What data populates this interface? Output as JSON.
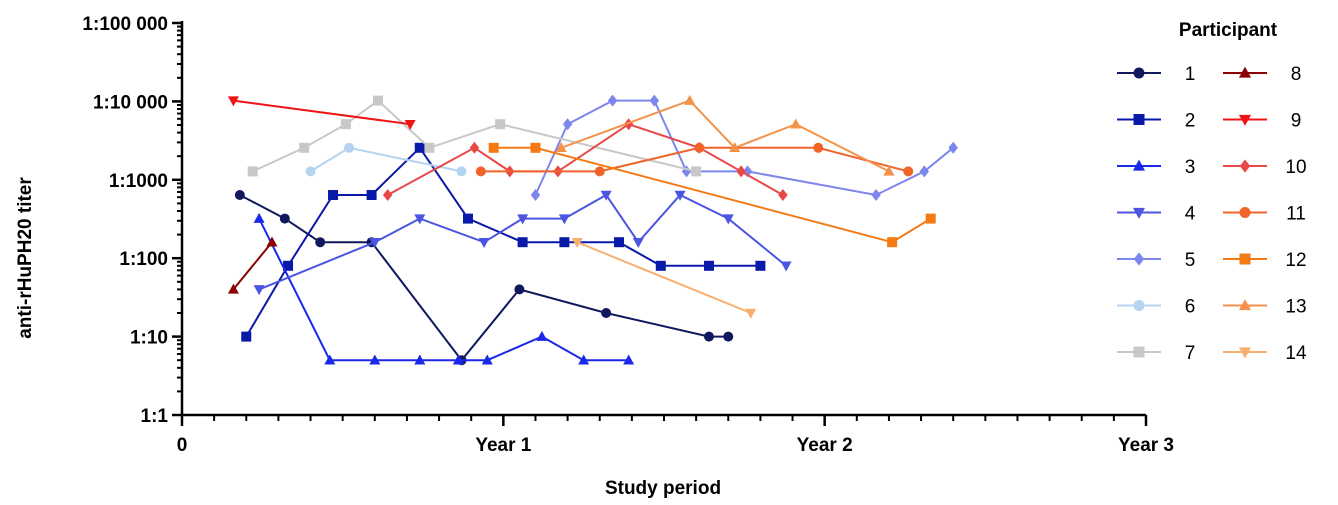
{
  "chart_data": {
    "type": "line",
    "title": "",
    "xlabel": "Study period",
    "ylabel": "anti-rHuPH20 titer",
    "xlim": [
      0,
      3
    ],
    "ylim": [
      1,
      100000
    ],
    "y_scale": "log",
    "x_ticks": [
      {
        "value": 0,
        "label": "0"
      },
      {
        "value": 1,
        "label": "Year 1"
      },
      {
        "value": 2,
        "label": "Year 2"
      },
      {
        "value": 3,
        "label": "Year 3"
      }
    ],
    "y_ticks": [
      {
        "value": 1,
        "label": "1:1"
      },
      {
        "value": 10,
        "label": "1:10"
      },
      {
        "value": 100,
        "label": "1:100"
      },
      {
        "value": 1000,
        "label": "1:1000"
      },
      {
        "value": 10000,
        "label": "1:10 000"
      },
      {
        "value": 100000,
        "label": "1:100 000"
      }
    ],
    "legend_title": "Participant",
    "legend_position": "right",
    "series": [
      {
        "name": "1",
        "color": "#10185e",
        "marker": "circle",
        "points": [
          [
            0.18,
            640
          ],
          [
            0.32,
            320
          ],
          [
            0.43,
            160
          ],
          [
            0.59,
            160
          ],
          [
            0.87,
            5
          ],
          [
            1.05,
            40
          ],
          [
            1.32,
            20
          ],
          [
            1.64,
            10
          ],
          [
            1.7,
            10
          ]
        ]
      },
      {
        "name": "2",
        "color": "#0a1aa8",
        "marker": "square",
        "points": [
          [
            0.2,
            10
          ],
          [
            0.33,
            80
          ],
          [
            0.47,
            640
          ],
          [
            0.59,
            640
          ],
          [
            0.74,
            2560
          ],
          [
            0.89,
            320
          ],
          [
            1.06,
            160
          ],
          [
            1.19,
            160
          ],
          [
            1.36,
            160
          ],
          [
            1.49,
            80
          ],
          [
            1.64,
            80
          ],
          [
            1.8,
            80
          ]
        ]
      },
      {
        "name": "3",
        "color": "#1a28ea",
        "marker": "triangle-up",
        "points": [
          [
            0.24,
            320
          ],
          [
            0.46,
            5
          ],
          [
            0.6,
            5
          ],
          [
            0.74,
            5
          ],
          [
            0.86,
            5
          ],
          [
            0.95,
            5
          ],
          [
            1.12,
            10
          ],
          [
            1.25,
            5
          ],
          [
            1.39,
            5
          ]
        ]
      },
      {
        "name": "4",
        "color": "#4b55e2",
        "marker": "triangle-down",
        "points": [
          [
            0.24,
            40
          ],
          [
            0.6,
            160
          ],
          [
            0.74,
            320
          ],
          [
            0.94,
            160
          ],
          [
            1.06,
            320
          ],
          [
            1.19,
            320
          ],
          [
            1.32,
            640
          ],
          [
            1.42,
            160
          ],
          [
            1.55,
            640
          ],
          [
            1.7,
            320
          ],
          [
            1.88,
            80
          ]
        ]
      },
      {
        "name": "5",
        "color": "#7d86ec",
        "marker": "diamond",
        "points": [
          [
            1.1,
            640
          ],
          [
            1.2,
            5120
          ],
          [
            1.34,
            10240
          ],
          [
            1.47,
            10240
          ],
          [
            1.57,
            1280
          ],
          [
            1.76,
            1280
          ],
          [
            2.16,
            640
          ],
          [
            2.31,
            1280
          ],
          [
            2.4,
            2560
          ]
        ]
      },
      {
        "name": "6",
        "color": "#b4d4f0",
        "marker": "circle",
        "points": [
          [
            0.4,
            1280
          ],
          [
            0.52,
            2560
          ],
          [
            0.87,
            1280
          ]
        ]
      },
      {
        "name": "7",
        "color": "#c8c8c8",
        "marker": "square",
        "points": [
          [
            0.22,
            1280
          ],
          [
            0.38,
            2560
          ],
          [
            0.51,
            5120
          ],
          [
            0.61,
            10240
          ],
          [
            0.77,
            2560
          ],
          [
            0.99,
            5120
          ],
          [
            1.6,
            1280
          ]
        ]
      },
      {
        "name": "8",
        "color": "#8b0000",
        "marker": "triangle-up",
        "points": [
          [
            0.16,
            40
          ],
          [
            0.28,
            160
          ]
        ]
      },
      {
        "name": "9",
        "color": "#f01414",
        "marker": "triangle-down",
        "points": [
          [
            0.16,
            10240
          ],
          [
            0.71,
            5120
          ]
        ]
      },
      {
        "name": "10",
        "color": "#e84848",
        "marker": "diamond",
        "points": [
          [
            0.64,
            640
          ],
          [
            0.91,
            2560
          ],
          [
            1.02,
            1280
          ],
          [
            1.17,
            1280
          ],
          [
            1.39,
            5120
          ],
          [
            1.61,
            2560
          ],
          [
            1.74,
            1280
          ],
          [
            1.87,
            640
          ]
        ]
      },
      {
        "name": "11",
        "color": "#f0642a",
        "marker": "circle",
        "points": [
          [
            0.93,
            1280
          ],
          [
            1.3,
            1280
          ],
          [
            1.61,
            2560
          ],
          [
            1.98,
            2560
          ],
          [
            2.26,
            1280
          ]
        ]
      },
      {
        "name": "12",
        "color": "#f57a14",
        "marker": "square",
        "points": [
          [
            0.97,
            2560
          ],
          [
            1.1,
            2560
          ],
          [
            2.21,
            160
          ],
          [
            2.33,
            320
          ]
        ]
      },
      {
        "name": "13",
        "color": "#f4924a",
        "marker": "triangle-up",
        "points": [
          [
            1.18,
            2560
          ],
          [
            1.58,
            10240
          ],
          [
            1.72,
            2560
          ],
          [
            1.91,
            5120
          ],
          [
            2.2,
            1280
          ]
        ]
      },
      {
        "name": "14",
        "color": "#f7b070",
        "marker": "triangle-down",
        "points": [
          [
            1.23,
            160
          ],
          [
            1.77,
            20
          ]
        ]
      }
    ]
  }
}
